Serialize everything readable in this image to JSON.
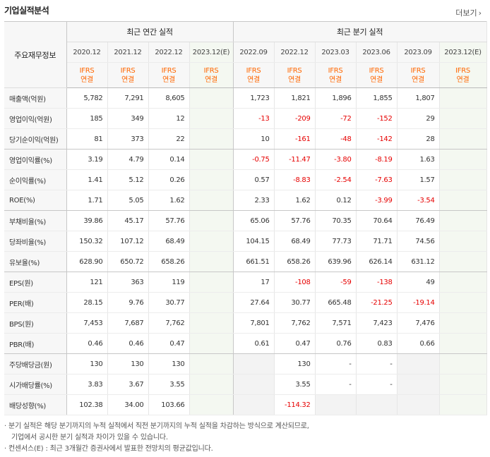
{
  "title": "기업실적분석",
  "more": {
    "label": "더보기",
    "icon": "chevron-right-icon"
  },
  "header": {
    "label_head": "주요재무정보",
    "annual_title": "최근 연간 실적",
    "quarter_title": "최근 분기 실적",
    "annual_periods": [
      "2020.12",
      "2021.12",
      "2022.12",
      "2023.12(E)"
    ],
    "quarter_periods": [
      "2022.09",
      "2022.12",
      "2023.03",
      "2023.06",
      "2023.09",
      "2023.12(E)"
    ],
    "ifrs_line1": "IFRS",
    "ifrs_line2": "연결"
  },
  "rows": [
    {
      "label": "매출액(억원)",
      "values": [
        "5,782",
        "7,291",
        "8,605",
        "",
        "1,723",
        "1,821",
        "1,896",
        "1,855",
        "1,807",
        ""
      ]
    },
    {
      "label": "영업이익(억원)",
      "values": [
        "185",
        "349",
        "12",
        "",
        "-13",
        "-209",
        "-72",
        "-152",
        "29",
        ""
      ]
    },
    {
      "label": "당기순이익(억원)",
      "values": [
        "81",
        "373",
        "22",
        "",
        "10",
        "-161",
        "-48",
        "-142",
        "28",
        ""
      ]
    },
    {
      "label": "영업이익률(%)",
      "values": [
        "3.19",
        "4.79",
        "0.14",
        "",
        "-0.75",
        "-11.47",
        "-3.80",
        "-8.19",
        "1.63",
        ""
      ]
    },
    {
      "label": "순이익률(%)",
      "values": [
        "1.41",
        "5.12",
        "0.26",
        "",
        "0.57",
        "-8.83",
        "-2.54",
        "-7.63",
        "1.57",
        ""
      ]
    },
    {
      "label": "ROE(%)",
      "values": [
        "1.71",
        "5.05",
        "1.62",
        "",
        "2.33",
        "1.62",
        "0.12",
        "-3.99",
        "-3.54",
        ""
      ]
    },
    {
      "label": "부채비율(%)",
      "values": [
        "39.86",
        "45.17",
        "57.76",
        "",
        "65.06",
        "57.76",
        "70.35",
        "70.64",
        "76.49",
        ""
      ]
    },
    {
      "label": "당좌비율(%)",
      "values": [
        "150.32",
        "107.12",
        "68.49",
        "",
        "104.15",
        "68.49",
        "77.73",
        "71.71",
        "74.56",
        ""
      ]
    },
    {
      "label": "유보율(%)",
      "values": [
        "628.90",
        "650.72",
        "658.26",
        "",
        "661.51",
        "658.26",
        "639.96",
        "626.14",
        "631.12",
        ""
      ]
    },
    {
      "label": "EPS(원)",
      "values": [
        "121",
        "363",
        "119",
        "",
        "17",
        "-108",
        "-59",
        "-138",
        "49",
        ""
      ]
    },
    {
      "label": "PER(배)",
      "values": [
        "28.15",
        "9.76",
        "30.77",
        "",
        "27.64",
        "30.77",
        "665.48",
        "-21.25",
        "-19.14",
        ""
      ]
    },
    {
      "label": "BPS(원)",
      "values": [
        "7,453",
        "7,687",
        "7,762",
        "",
        "7,801",
        "7,762",
        "7,571",
        "7,423",
        "7,476",
        ""
      ]
    },
    {
      "label": "PBR(배)",
      "values": [
        "0.46",
        "0.46",
        "0.47",
        "",
        "0.61",
        "0.47",
        "0.76",
        "0.83",
        "0.66",
        ""
      ]
    },
    {
      "label": "주당배당금(원)",
      "values": [
        "130",
        "130",
        "130",
        "",
        "",
        "130",
        "-",
        "-",
        "",
        ""
      ]
    },
    {
      "label": "시가배당률(%)",
      "values": [
        "3.83",
        "3.67",
        "3.55",
        "",
        "",
        "3.55",
        "-",
        "-",
        "",
        ""
      ]
    },
    {
      "label": "배당성향(%)",
      "values": [
        "102.38",
        "34.00",
        "103.66",
        "",
        "",
        "-114.32",
        "",
        "",
        "",
        ""
      ]
    }
  ],
  "notes": {
    "line1": "· 분기 실적은 해당 분기까지의 누적 실적에서 직전 분기까지의 누적 실적을 차감하는 방식으로 계산되므로,",
    "line2": "기업에서 공시한 분기 실적과 차이가 있을 수 있습니다.",
    "line3": "· 컨센서스(E) : 최근 3개월간 증권사에서 발표한 전망치의 평균값입니다."
  },
  "colors": {
    "negative": "#e60000",
    "ifrs": "#ff6600",
    "estimate_bg": "#f4f8f1"
  }
}
